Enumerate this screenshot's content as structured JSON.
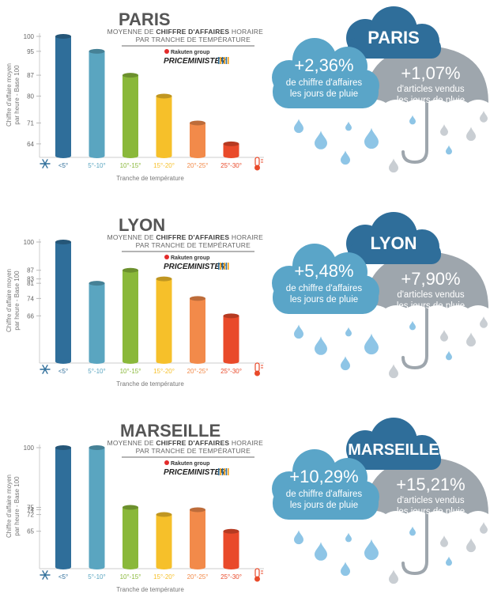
{
  "common": {
    "subtitle_pre": "MOYENNE DE ",
    "subtitle_bold": "CHIFFRE D'AFFAIRES",
    "subtitle_post": " HORAIRE",
    "subtitle_line2": "PAR TRANCHE DE TEMPÉRATURE",
    "ylabel_line1": "Chiffre d'affaire moyen",
    "ylabel_line2": "par heure - Base 100",
    "xlabel": "Tranche de température",
    "logo_top": "Rakuten group",
    "logo_main": "PRICEMINISTER",
    "revenue_label_1": "de chiffre d'affaires",
    "revenue_label_2": "les jours de pluie",
    "articles_label_1": "d'articles vendus",
    "articles_label_2": "les jours de pluie",
    "colors": [
      "#2f6e9a",
      "#5aa5c0",
      "#8ab83a",
      "#f6c02a",
      "#f28a4a",
      "#e94a2a"
    ],
    "cloud_dark": "#2f6e9a",
    "cloud_light": "#5aa5c8",
    "umbrella_grey": "#9ea6ad",
    "drop_blue": "#8ec5e6",
    "drop_grey": "#c9ced3",
    "icons": [
      "snowflake-icon",
      "thermometer-icon",
      "umbrella-icon",
      "raindrop-icon",
      "cloud-icon"
    ]
  },
  "chart_data": [
    {
      "type": "bar",
      "title": "PARIS",
      "categories": [
        "<5°",
        "5°-10°",
        "10°-15°",
        "15°-20°",
        "20°-25°",
        "25°-30°"
      ],
      "values": [
        100,
        95,
        87,
        80,
        71,
        64
      ],
      "tick_labels": [
        "100",
        "95",
        "87",
        "80",
        "71",
        "64"
      ],
      "ylim": [
        60,
        100
      ],
      "ylabel": "Chiffre d'affaire moyen par heure - Base 100",
      "xlabel": "Tranche de température",
      "rain": {
        "city": "PARIS",
        "revenue": "+2,36%",
        "articles": "+1,07%"
      }
    },
    {
      "type": "bar",
      "title": "LYON",
      "categories": [
        "<5°",
        "5°-10°",
        "10°-15°",
        "15°-20°",
        "20°-25°",
        "25°-30°"
      ],
      "values": [
        100,
        81,
        87,
        83,
        74,
        66
      ],
      "tick_labels": [
        "100",
        "87",
        "83",
        "81",
        "74",
        "66"
      ],
      "ylim": [
        45,
        100
      ],
      "ylabel": "Chiffre d'affaire moyen par heure - Base 100",
      "xlabel": "Tranche de température",
      "rain": {
        "city": "LYON",
        "revenue": "+5,48%",
        "articles": "+7,90%"
      }
    },
    {
      "type": "bar",
      "title": "MARSEILLE",
      "categories": [
        "<5°",
        "5°-10°",
        "10°-15°",
        "15°-20°",
        "20°-25°",
        "25°-30°"
      ],
      "values": [
        100,
        100,
        75,
        72,
        74,
        65
      ],
      "tick_labels": [
        "100",
        "75",
        "74",
        "72",
        "65"
      ],
      "ylim": [
        50,
        100
      ],
      "ylabel": "Chiffre d'affaire moyen par heure - Base 100",
      "xlabel": "Tranche de température",
      "rain": {
        "city": "MARSEILLE",
        "revenue": "+10,29%",
        "articles": "+15,21%"
      }
    }
  ]
}
